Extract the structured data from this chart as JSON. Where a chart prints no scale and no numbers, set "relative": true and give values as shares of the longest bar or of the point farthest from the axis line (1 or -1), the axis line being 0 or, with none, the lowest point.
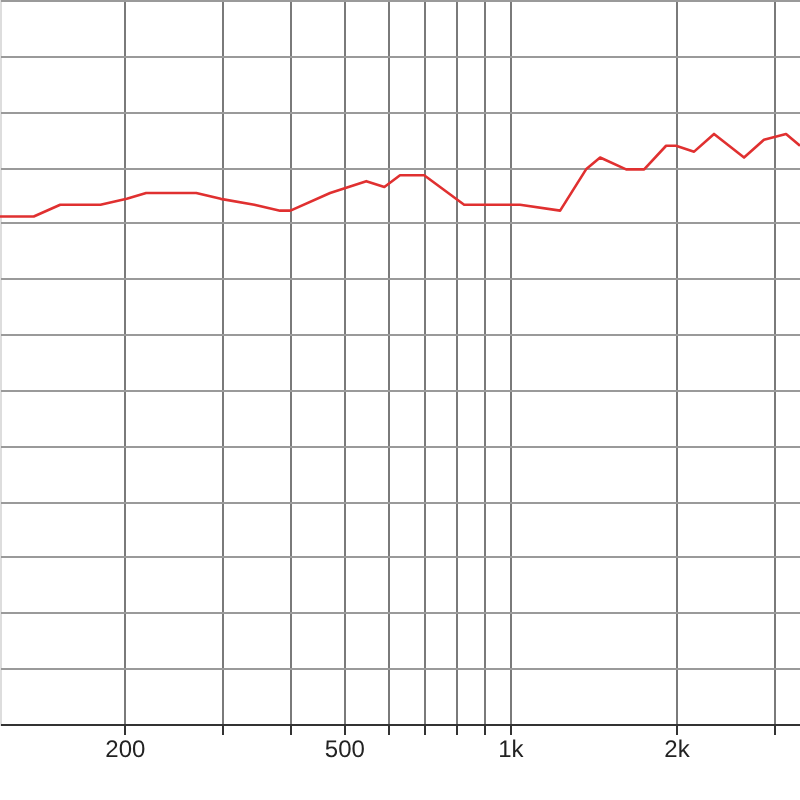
{
  "chart_data": {
    "type": "line",
    "relative": true,
    "log": "x",
    "grid": true,
    "marker": "none",
    "line_style": "solid",
    "xlim": [
      119,
      3356
    ],
    "xticks": [
      200,
      {
        "value": 300,
        "label": null
      },
      {
        "value": 400,
        "label": null
      },
      500,
      {
        "value": 600,
        "label": null
      },
      {
        "value": 700,
        "label": null
      },
      {
        "value": 800,
        "label": null
      },
      {
        "value": 900,
        "label": null
      },
      {
        "value": 1000,
        "label": "1k"
      },
      {
        "value": 2000,
        "label": "2k"
      },
      {
        "value": 3000,
        "label": null
      }
    ],
    "x": [
      119,
      130,
      137,
      153,
      181,
      202,
      219,
      253,
      270,
      299,
      344,
      383,
      400,
      472,
      549,
      592,
      632,
      699,
      826,
      906,
      960,
      1043,
      1233,
      1374,
      1457,
      1624,
      1751,
      1919,
      2000,
      2157,
      2344,
      2657,
      2887,
      3166,
      3356
    ],
    "series": [
      {
        "color": "#e03030",
        "values": [
          0.86,
          0.86,
          0.86,
          0.88,
          0.88,
          0.89,
          0.9,
          0.9,
          0.9,
          0.89,
          0.88,
          0.87,
          0.87,
          0.9,
          0.92,
          0.91,
          0.93,
          0.93,
          0.88,
          0.88,
          0.88,
          0.88,
          0.87,
          0.94,
          0.96,
          0.94,
          0.94,
          0.98,
          0.98,
          0.97,
          1.0,
          0.96,
          0.99,
          1.0,
          0.98
        ]
      }
    ]
  }
}
